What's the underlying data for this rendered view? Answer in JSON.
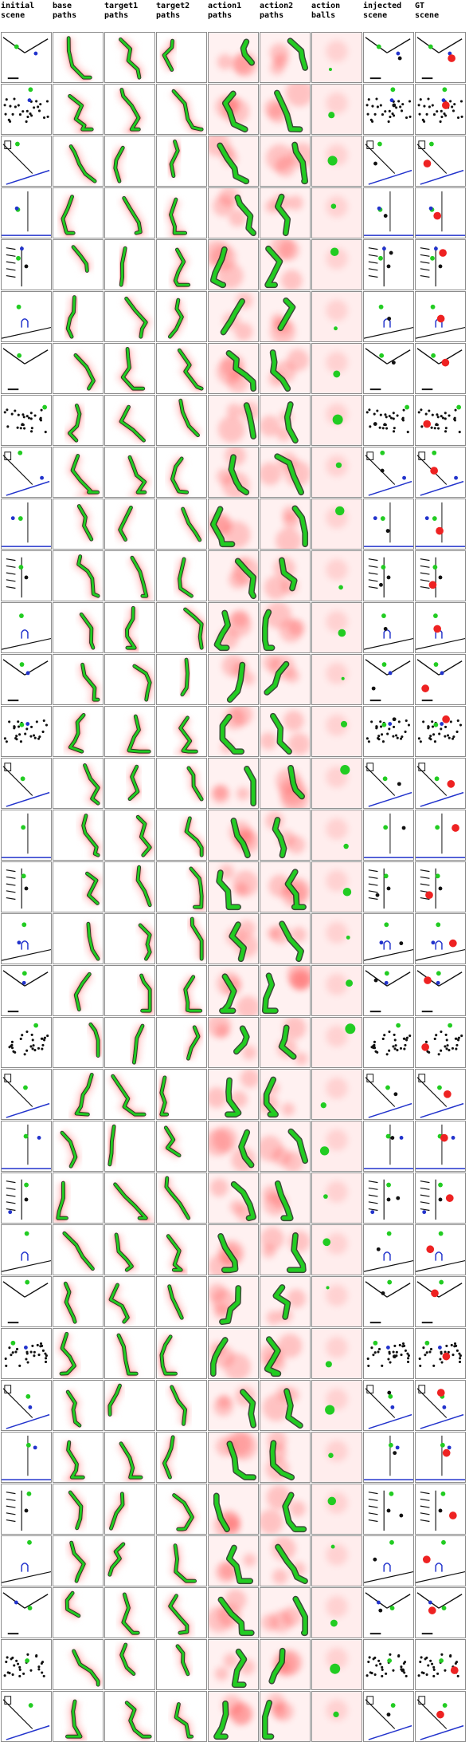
{
  "columns": [
    {
      "key": "initial_scene",
      "label": "initial\nscene",
      "kind": "scene"
    },
    {
      "key": "base_paths",
      "label": "base\npaths",
      "kind": "paths"
    },
    {
      "key": "target1_paths",
      "label": "target1\npaths",
      "kind": "paths"
    },
    {
      "key": "target2_paths",
      "label": "target2\npaths",
      "kind": "paths"
    },
    {
      "key": "action1_paths",
      "label": "action1\npaths",
      "kind": "heat"
    },
    {
      "key": "action2_paths",
      "label": "action2\npaths",
      "kind": "heat"
    },
    {
      "key": "action_balls",
      "label": "action\nballs",
      "kind": "balls"
    },
    {
      "key": "injected_scene",
      "label": "injected\nscene",
      "kind": "scene"
    },
    {
      "key": "gt_scene",
      "label": "GT\nscene",
      "kind": "scene"
    }
  ],
  "row_count": 33,
  "colors": {
    "path_green": "#22cc22",
    "path_dark": "#0a200a",
    "heat_red": "#ff3b3b",
    "heat_pink": "#ffd6d6",
    "ball_green": "#22cc22",
    "ball_red": "#ee2222",
    "wall_blue": "#2233cc",
    "obstacle_black": "#111111",
    "grid_border": "#8c8c8c"
  }
}
